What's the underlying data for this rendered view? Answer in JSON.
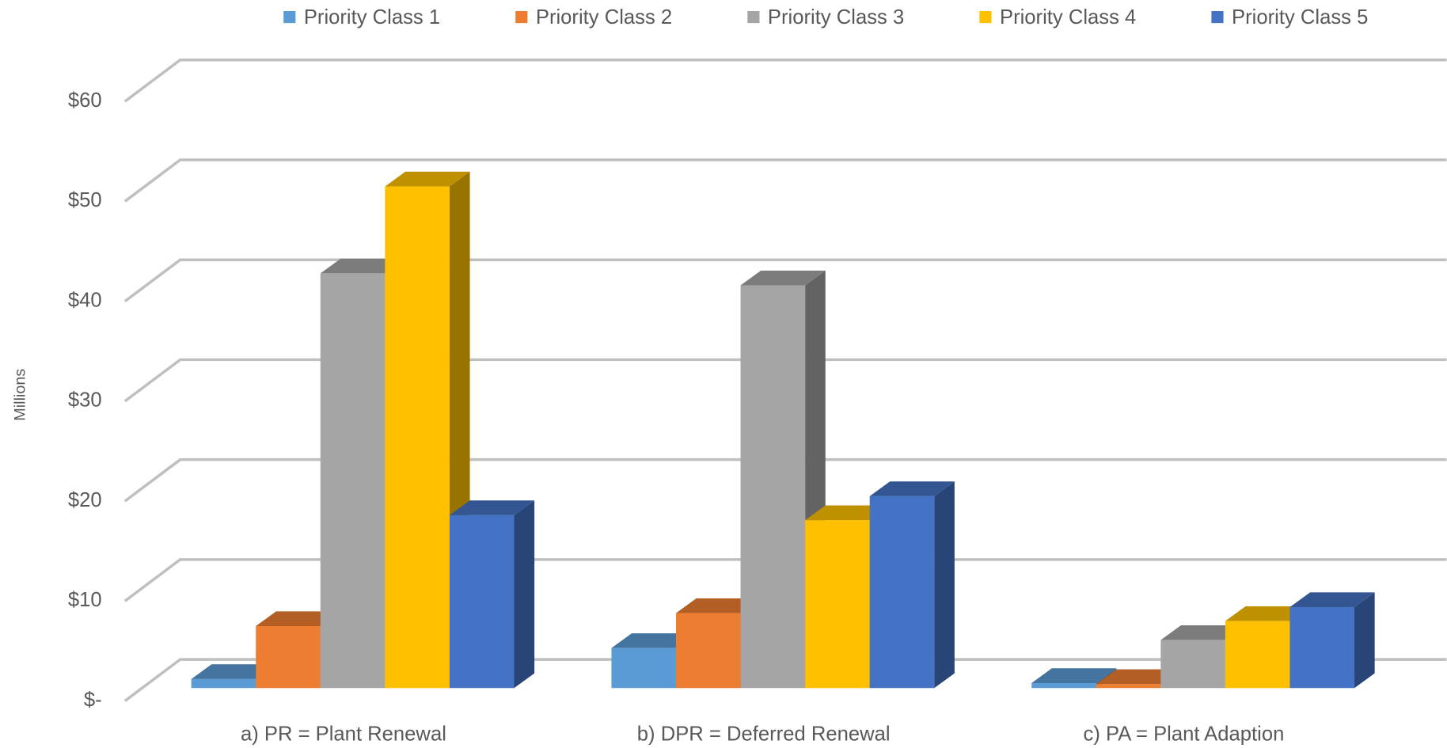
{
  "chart_data": {
    "type": "bar3d",
    "y_label": "Millions",
    "categories": [
      "a) PR = Plant Renewal",
      "b) DPR = Deferred Renewal",
      "c) PA = Plant Adaption"
    ],
    "series": [
      {
        "name": "Priority Class 1",
        "color": "#5b9bd5",
        "values": [
          0.9,
          4.0,
          0.5
        ]
      },
      {
        "name": "Priority Class 2",
        "color": "#ed7d31",
        "values": [
          6.2,
          7.5,
          0.4
        ]
      },
      {
        "name": "Priority Class 3",
        "color": "#a5a5a5",
        "values": [
          41.5,
          40.3,
          4.8
        ]
      },
      {
        "name": "Priority Class 4",
        "color": "#ffc000",
        "values": [
          50.2,
          16.8,
          6.7
        ]
      },
      {
        "name": "Priority Class 5",
        "color": "#4472c4",
        "values": [
          17.3,
          19.2,
          8.1
        ]
      }
    ],
    "ylim": [
      0,
      60
    ],
    "yticks": [
      {
        "value": 0,
        "label": "$-"
      },
      {
        "value": 10,
        "label": "$10"
      },
      {
        "value": 20,
        "label": "$20"
      },
      {
        "value": 30,
        "label": "$30"
      },
      {
        "value": 40,
        "label": "$40"
      },
      {
        "value": 50,
        "label": "$50"
      },
      {
        "value": 60,
        "label": "$60"
      }
    ],
    "grid": true,
    "legend": "top"
  }
}
